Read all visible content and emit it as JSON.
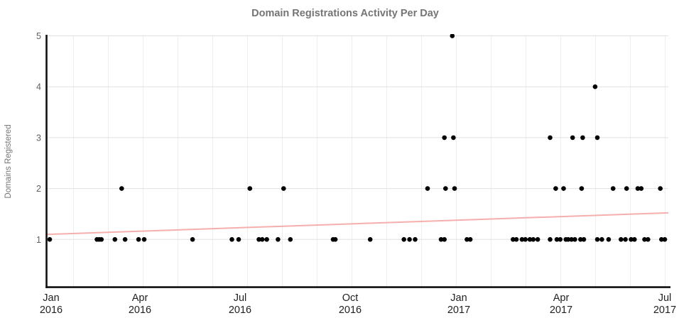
{
  "title": "Domain Registrations Activity Per Day",
  "y_axis": {
    "title": "Domains Registered",
    "tick_labels": [
      "1",
      "2",
      "3",
      "4",
      "5"
    ]
  },
  "x_axis": {
    "tick_labels": [
      {
        "month": "Jan",
        "year": "2016"
      },
      {
        "month": "Apr",
        "year": "2016"
      },
      {
        "month": "Jul",
        "year": "2016"
      },
      {
        "month": "Oct",
        "year": "2016"
      },
      {
        "month": "Jan",
        "year": "2017"
      },
      {
        "month": "Apr",
        "year": "2017"
      },
      {
        "month": "Jul",
        "year": "2017"
      }
    ]
  },
  "colors": {
    "background": "#ffffff",
    "point": "#000000",
    "trend": "#f4a6a3",
    "grid_horizontal": "#e0e0e0",
    "grid_vertical": "#eeeeee",
    "axis_line": "#111111",
    "title_text": "#757575",
    "y_axis_text": "#616161",
    "x_axis_text": "#1f1f1f"
  },
  "chart_data": {
    "type": "scatter",
    "title": "Domain Registrations Activity Per Day",
    "xlabel": "",
    "ylabel": "Domains Registered",
    "x_range": [
      "2016-01-01",
      "2017-07-01"
    ],
    "ylim": [
      0,
      5
    ],
    "grid": true,
    "legend": "none",
    "points": [
      [
        "2016-01-01",
        1
      ],
      [
        "2016-02-12",
        1
      ],
      [
        "2016-02-14",
        1
      ],
      [
        "2016-02-16",
        1
      ],
      [
        "2016-02-28",
        1
      ],
      [
        "2016-03-08",
        1
      ],
      [
        "2016-03-20",
        1
      ],
      [
        "2016-03-25",
        1
      ],
      [
        "2016-05-07",
        1
      ],
      [
        "2016-06-11",
        1
      ],
      [
        "2016-06-17",
        1
      ],
      [
        "2016-07-05",
        1
      ],
      [
        "2016-07-08",
        1
      ],
      [
        "2016-07-12",
        1
      ],
      [
        "2016-07-22",
        1
      ],
      [
        "2016-08-02",
        1
      ],
      [
        "2016-09-09",
        1
      ],
      [
        "2016-09-11",
        1
      ],
      [
        "2016-10-12",
        1
      ],
      [
        "2016-11-11",
        1
      ],
      [
        "2016-11-16",
        1
      ],
      [
        "2016-11-21",
        1
      ],
      [
        "2016-12-14",
        1
      ],
      [
        "2016-12-17",
        1
      ],
      [
        "2017-01-06",
        1
      ],
      [
        "2017-01-09",
        1
      ],
      [
        "2017-02-16",
        1
      ],
      [
        "2017-02-19",
        1
      ],
      [
        "2017-02-24",
        1
      ],
      [
        "2017-02-27",
        1
      ],
      [
        "2017-03-03",
        1
      ],
      [
        "2017-03-06",
        1
      ],
      [
        "2017-03-10",
        1
      ],
      [
        "2017-03-21",
        1
      ],
      [
        "2017-03-27",
        1
      ],
      [
        "2017-03-30",
        1
      ],
      [
        "2017-04-04",
        1
      ],
      [
        "2017-04-06",
        1
      ],
      [
        "2017-04-09",
        1
      ],
      [
        "2017-04-12",
        1
      ],
      [
        "2017-04-17",
        1
      ],
      [
        "2017-04-20",
        1
      ],
      [
        "2017-05-02",
        1
      ],
      [
        "2017-05-06",
        1
      ],
      [
        "2017-05-12",
        1
      ],
      [
        "2017-05-23",
        1
      ],
      [
        "2017-05-27",
        1
      ],
      [
        "2017-06-01",
        1
      ],
      [
        "2017-06-04",
        1
      ],
      [
        "2017-06-13",
        1
      ],
      [
        "2017-06-16",
        1
      ],
      [
        "2017-06-28",
        1
      ],
      [
        "2017-07-01",
        1
      ],
      [
        "2016-03-05",
        2
      ],
      [
        "2016-06-27",
        2
      ],
      [
        "2016-07-27",
        2
      ],
      [
        "2016-12-02",
        2
      ],
      [
        "2016-12-18",
        2
      ],
      [
        "2016-12-26",
        2
      ],
      [
        "2017-03-26",
        2
      ],
      [
        "2017-04-02",
        2
      ],
      [
        "2017-04-18",
        2
      ],
      [
        "2017-05-16",
        2
      ],
      [
        "2017-05-28",
        2
      ],
      [
        "2017-06-07",
        2
      ],
      [
        "2017-06-10",
        2
      ],
      [
        "2017-06-27",
        2
      ],
      [
        "2016-12-17",
        3
      ],
      [
        "2016-12-25",
        3
      ],
      [
        "2017-03-21",
        3
      ],
      [
        "2017-04-10",
        3
      ],
      [
        "2017-04-19",
        3
      ],
      [
        "2017-05-02",
        3
      ],
      [
        "2017-04-30",
        4
      ],
      [
        "2016-12-24",
        5
      ]
    ],
    "trend_line": {
      "start_date": "2016-01-01",
      "start_value": 1.1,
      "end_date": "2017-07-01",
      "end_value": 1.52,
      "color": "#f4a6a3"
    }
  }
}
